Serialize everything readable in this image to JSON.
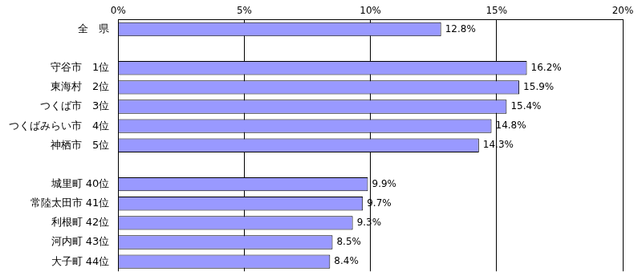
{
  "chart_data": {
    "type": "bar",
    "orientation": "horizontal",
    "categories": [
      "全　県",
      null,
      "守谷市　1位",
      "東海村　2位",
      "つくば市　3位",
      "つくばみらい市　4位",
      "神栖市　5位",
      null,
      "城里町 40位",
      "常陸太田市 41位",
      "利根町 42位",
      "河内町 43位",
      "大子町 44位"
    ],
    "values": [
      12.8,
      null,
      16.2,
      15.9,
      15.4,
      14.8,
      14.3,
      null,
      9.9,
      9.7,
      9.3,
      8.5,
      8.4
    ],
    "value_labels": [
      "12.8%",
      null,
      "16.2%",
      "15.9%",
      "15.4%",
      "14.8%",
      "14.3%",
      null,
      "9.9%",
      "9.7%",
      "9.3%",
      "8.5%",
      "8.4%"
    ],
    "data_labels": true,
    "color": "#9999ff",
    "xlim": [
      0,
      20
    ],
    "xticks": [
      {
        "value": 0,
        "label": "0%"
      },
      {
        "value": 5,
        "label": "5%"
      },
      {
        "value": 10,
        "label": "10%"
      },
      {
        "value": 15,
        "label": "15%"
      },
      {
        "value": 20,
        "label": "20%"
      }
    ],
    "grid": true
  }
}
